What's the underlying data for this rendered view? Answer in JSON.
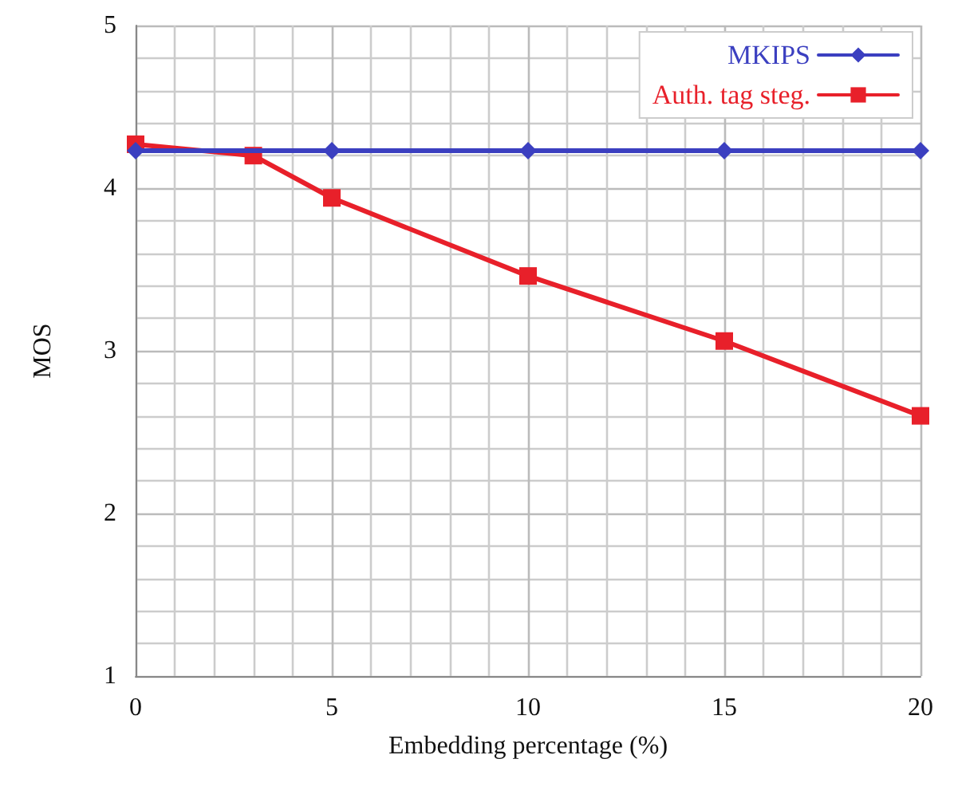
{
  "chart_data": {
    "type": "line",
    "xlabel": "Embedding percentage (%)",
    "ylabel": "MOS",
    "series": [
      {
        "name": "MKIPS",
        "color": "#3b3fc0",
        "marker": "diamond",
        "x": [
          0,
          5,
          10,
          15,
          20
        ],
        "values": [
          4.23,
          4.23,
          4.23,
          4.23,
          4.23
        ]
      },
      {
        "name": "Auth. tag steg.",
        "color": "#e8202a",
        "marker": "square",
        "x": [
          0,
          3,
          5,
          10,
          15,
          20
        ],
        "values": [
          4.27,
          4.2,
          3.94,
          3.46,
          3.06,
          2.6
        ]
      }
    ],
    "xlim": [
      0,
      20
    ],
    "xticks": [
      0,
      5,
      10,
      15,
      20
    ],
    "ylim": [
      1,
      5
    ],
    "yticks": [
      1,
      2,
      3,
      4,
      5
    ],
    "grid": true,
    "legend": "top right",
    "line_style": "solid"
  }
}
